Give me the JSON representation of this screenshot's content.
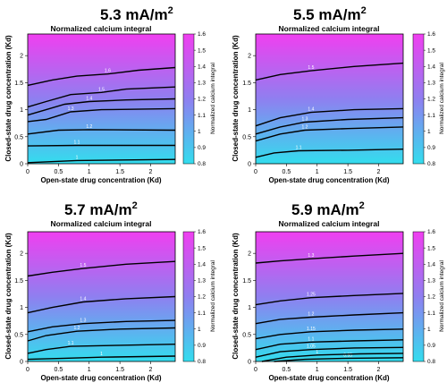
{
  "panels": [
    {
      "title": "5.3 mA/m",
      "title_sup": "2",
      "subtitle": "Normalized calcium integral",
      "xlabel": "Open-state drug concentration (Kd)",
      "ylabel": "Closed-state drug concentration (Kd)",
      "colorbar_label": "Normalized calcium integral",
      "xticks": [
        "0",
        "0.5",
        "1",
        "1.5",
        "2"
      ],
      "yticks": [
        "0",
        "0.5",
        "1",
        "1.5",
        "2"
      ],
      "cbticks": [
        "1",
        "0.9",
        "0.8",
        "1.1",
        "1.2",
        "1.3",
        "1.4",
        "1.5",
        "1.6"
      ],
      "cb_range": [
        0.8,
        1.6
      ],
      "contour_labels": [
        "1",
        "1.1",
        "1.2",
        "1.3",
        "1.4",
        "1.5",
        "1.6"
      ]
    },
    {
      "title": "5.5 mA/m",
      "title_sup": "2",
      "subtitle": "Normalized calcium integral",
      "xlabel": "Open-state drug concentration (Kd)",
      "ylabel": "Closed-state drug concentration (Kd)",
      "colorbar_label": "Normalized calcium integral",
      "xticks": [
        "0",
        "0.5",
        "1",
        "1.5",
        "2"
      ],
      "yticks": [
        "0",
        "0.5",
        "1",
        "1.5",
        "2"
      ],
      "cbticks": [
        "1",
        "0.9",
        "0.8",
        "1.1",
        "1.2",
        "1.3",
        "1.4",
        "1.5",
        "1.6"
      ],
      "cb_range": [
        0.8,
        1.6
      ],
      "contour_labels": [
        "1.1",
        "1.2",
        "1.3",
        "1.4",
        "1.5"
      ]
    },
    {
      "title": "5.7 mA/m",
      "title_sup": "2",
      "subtitle": "Normalized calcium integral",
      "xlabel": "Open-state drug concentration (Kd)",
      "ylabel": "Closed-state drug concentration (Kd)",
      "colorbar_label": "Normalized calcium integral",
      "xticks": [
        "0",
        "0.5",
        "1",
        "1.5",
        "2"
      ],
      "yticks": [
        "0",
        "0.5",
        "1",
        "1.5",
        "2"
      ],
      "cbticks": [
        "1",
        "0.9",
        "0.8",
        "1.1",
        "1.2",
        "1.3",
        "1.4",
        "1.5",
        "1.6"
      ],
      "cb_range": [
        0.8,
        1.6
      ],
      "contour_labels": [
        "1",
        "1.1",
        "1.2",
        "1.3",
        "1.4",
        "1.5"
      ]
    },
    {
      "title": "5.9 mA/m",
      "title_sup": "2",
      "subtitle": "Normalized calcium integral",
      "xlabel": "Open-state drug concentration (Kd)",
      "ylabel": "Closed-state drug concentration (Kd)",
      "colorbar_label": "Normalized calcium integral",
      "xticks": [
        "0",
        "0.5",
        "1",
        "1.5",
        "2"
      ],
      "yticks": [
        "0",
        "0.5",
        "1",
        "1.5",
        "2"
      ],
      "cbticks": [
        "1",
        "0.9",
        "0.8",
        "1.1",
        "1.2",
        "1.3",
        "1.4",
        "1.5",
        "1.6"
      ],
      "cb_range": [
        0.8,
        1.6
      ],
      "contour_labels": [
        "0.95",
        "1",
        "1.05",
        "1.1",
        "1.15",
        "1.2",
        "1.25",
        "1.3"
      ]
    }
  ],
  "colors": {
    "low": "#33ddee",
    "mid": "#8f7ff0",
    "high": "#f03ff0",
    "contour": "#000000"
  },
  "chart_data": [
    {
      "type": "heatmap",
      "title": "5.3 mA/m2",
      "subtitle": "Normalized calcium integral",
      "xlabel": "Open-state drug concentration (Kd)",
      "ylabel": "Closed-state drug concentration (Kd)",
      "xlim": [
        0,
        2.4
      ],
      "ylim": [
        0,
        2.4
      ],
      "clim": [
        0.8,
        1.6
      ],
      "contours": [
        {
          "level": 1.0,
          "points": [
            [
              0,
              0.02
            ],
            [
              0.8,
              0.06
            ],
            [
              2.4,
              0.08
            ]
          ]
        },
        {
          "level": 1.1,
          "points": [
            [
              0,
              0.33
            ],
            [
              0.8,
              0.34
            ],
            [
              2.4,
              0.34
            ]
          ]
        },
        {
          "level": 1.2,
          "points": [
            [
              0,
              0.55
            ],
            [
              0.5,
              0.62
            ],
            [
              1.0,
              0.63
            ],
            [
              2.4,
              0.62
            ]
          ]
        },
        {
          "level": 1.3,
          "points": [
            [
              0,
              0.78
            ],
            [
              0.3,
              0.82
            ],
            [
              0.7,
              0.96
            ],
            [
              1.2,
              1.0
            ],
            [
              2.4,
              1.02
            ]
          ]
        },
        {
          "level": 1.4,
          "points": [
            [
              0,
              0.9
            ],
            [
              0.3,
              1.0
            ],
            [
              0.6,
              1.1
            ],
            [
              1.0,
              1.15
            ],
            [
              1.6,
              1.18
            ],
            [
              2.4,
              1.2
            ]
          ]
        },
        {
          "level": 1.5,
          "points": [
            [
              0,
              1.05
            ],
            [
              0.3,
              1.15
            ],
            [
              0.7,
              1.28
            ],
            [
              1.2,
              1.32
            ],
            [
              1.6,
              1.38
            ],
            [
              2.4,
              1.42
            ]
          ]
        },
        {
          "level": 1.6,
          "points": [
            [
              0,
              1.45
            ],
            [
              0.4,
              1.55
            ],
            [
              0.8,
              1.62
            ],
            [
              1.3,
              1.66
            ],
            [
              1.8,
              1.73
            ],
            [
              2.4,
              1.78
            ]
          ]
        }
      ]
    },
    {
      "type": "heatmap",
      "title": "5.5 mA/m2",
      "subtitle": "Normalized calcium integral",
      "xlabel": "Open-state drug concentration (Kd)",
      "ylabel": "Closed-state drug concentration (Kd)",
      "xlim": [
        0,
        2.4
      ],
      "ylim": [
        0,
        2.4
      ],
      "clim": [
        0.8,
        1.6
      ],
      "contours": [
        {
          "level": 1.1,
          "points": [
            [
              0,
              0.12
            ],
            [
              0.3,
              0.2
            ],
            [
              0.7,
              0.24
            ],
            [
              1.5,
              0.25
            ],
            [
              2.4,
              0.27
            ]
          ]
        },
        {
          "level": 1.2,
          "points": [
            [
              0,
              0.42
            ],
            [
              0.4,
              0.55
            ],
            [
              0.8,
              0.62
            ],
            [
              1.5,
              0.65
            ],
            [
              2.4,
              0.68
            ]
          ]
        },
        {
          "level": 1.3,
          "points": [
            [
              0,
              0.55
            ],
            [
              0.4,
              0.68
            ],
            [
              0.8,
              0.77
            ],
            [
              1.5,
              0.82
            ],
            [
              2.4,
              0.85
            ]
          ]
        },
        {
          "level": 1.4,
          "points": [
            [
              0,
              0.7
            ],
            [
              0.4,
              0.85
            ],
            [
              0.9,
              0.95
            ],
            [
              1.6,
              1.0
            ],
            [
              2.4,
              1.02
            ]
          ]
        },
        {
          "level": 1.5,
          "points": [
            [
              0,
              1.55
            ],
            [
              0.4,
              1.65
            ],
            [
              0.9,
              1.72
            ],
            [
              1.6,
              1.8
            ],
            [
              2.4,
              1.86
            ]
          ]
        }
      ]
    },
    {
      "type": "heatmap",
      "title": "5.7 mA/m2",
      "subtitle": "Normalized calcium integral",
      "xlabel": "Open-state drug concentration (Kd)",
      "ylabel": "Closed-state drug concentration (Kd)",
      "xlim": [
        0,
        2.4
      ],
      "ylim": [
        0,
        2.4
      ],
      "clim": [
        0.8,
        1.6
      ],
      "contours": [
        {
          "level": 1.0,
          "points": [
            [
              0,
              0.04
            ],
            [
              0.6,
              0.06
            ],
            [
              1.2,
              0.08
            ],
            [
              2.4,
              0.1
            ]
          ]
        },
        {
          "level": 1.1,
          "points": [
            [
              0,
              0.15
            ],
            [
              0.3,
              0.22
            ],
            [
              0.7,
              0.28
            ],
            [
              1.5,
              0.3
            ],
            [
              2.4,
              0.32
            ]
          ]
        },
        {
          "level": 1.2,
          "points": [
            [
              0,
              0.38
            ],
            [
              0.3,
              0.48
            ],
            [
              0.8,
              0.56
            ],
            [
              1.5,
              0.6
            ],
            [
              2.4,
              0.62
            ]
          ]
        },
        {
          "level": 1.3,
          "points": [
            [
              0,
              0.55
            ],
            [
              0.4,
              0.64
            ],
            [
              0.9,
              0.7
            ],
            [
              1.6,
              0.74
            ],
            [
              2.4,
              0.76
            ]
          ]
        },
        {
          "level": 1.4,
          "points": [
            [
              0,
              0.9
            ],
            [
              0.4,
              1.0
            ],
            [
              0.9,
              1.1
            ],
            [
              1.6,
              1.16
            ],
            [
              2.4,
              1.2
            ]
          ]
        },
        {
          "level": 1.5,
          "points": [
            [
              0,
              1.58
            ],
            [
              0.4,
              1.65
            ],
            [
              0.9,
              1.72
            ],
            [
              1.6,
              1.8
            ],
            [
              2.4,
              1.85
            ]
          ]
        }
      ]
    },
    {
      "type": "heatmap",
      "title": "5.9 mA/m2",
      "subtitle": "Normalized calcium integral",
      "xlabel": "Open-state drug concentration (Kd)",
      "ylabel": "Closed-state drug concentration (Kd)",
      "xlim": [
        0,
        2.4
      ],
      "ylim": [
        0,
        2.4
      ],
      "clim": [
        0.8,
        1.6
      ],
      "contours": [
        {
          "level": 0.95,
          "points": [
            [
              0.3,
              0.0
            ],
            [
              0.8,
              0.04
            ],
            [
              1.5,
              0.06
            ],
            [
              2.4,
              0.07
            ]
          ]
        },
        {
          "level": 1.0,
          "points": [
            [
              0.1,
              0.0
            ],
            [
              0.5,
              0.08
            ],
            [
              1.0,
              0.12
            ],
            [
              1.7,
              0.14
            ],
            [
              2.4,
              0.15
            ]
          ]
        },
        {
          "level": 1.05,
          "points": [
            [
              0,
              0.08
            ],
            [
              0.4,
              0.18
            ],
            [
              0.9,
              0.22
            ],
            [
              1.6,
              0.25
            ],
            [
              2.4,
              0.26
            ]
          ]
        },
        {
          "level": 1.1,
          "points": [
            [
              0,
              0.22
            ],
            [
              0.4,
              0.32
            ],
            [
              0.9,
              0.36
            ],
            [
              1.6,
              0.38
            ],
            [
              2.4,
              0.4
            ]
          ]
        },
        {
          "level": 1.15,
          "points": [
            [
              0,
              0.42
            ],
            [
              0.4,
              0.5
            ],
            [
              0.9,
              0.55
            ],
            [
              1.6,
              0.58
            ],
            [
              2.4,
              0.6
            ]
          ]
        },
        {
          "level": 1.2,
          "points": [
            [
              0,
              0.7
            ],
            [
              0.4,
              0.78
            ],
            [
              0.9,
              0.82
            ],
            [
              1.6,
              0.86
            ],
            [
              2.4,
              0.9
            ]
          ]
        },
        {
          "level": 1.25,
          "points": [
            [
              0,
              1.05
            ],
            [
              0.4,
              1.12
            ],
            [
              0.9,
              1.18
            ],
            [
              1.6,
              1.22
            ],
            [
              2.4,
              1.26
            ]
          ]
        },
        {
          "level": 1.3,
          "points": [
            [
              0,
              1.82
            ],
            [
              0.4,
              1.86
            ],
            [
              0.9,
              1.9
            ],
            [
              1.6,
              1.95
            ],
            [
              2.4,
              2.0
            ]
          ]
        }
      ]
    }
  ]
}
